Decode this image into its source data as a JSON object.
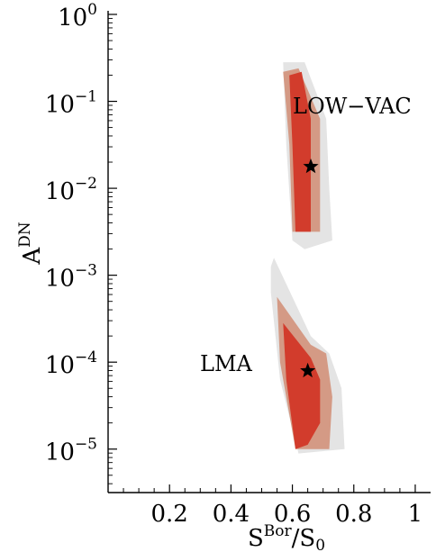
{
  "chart_data": {
    "type": "scatter",
    "title": "",
    "xlabel": {
      "main": "S",
      "sup": "Bor",
      "tail": "/S",
      "sub": "0"
    },
    "ylabel": {
      "main": "A",
      "sup": "DN"
    },
    "xlim": [
      0.0,
      1.05
    ],
    "ylim_log10": [
      -5.5,
      0
    ],
    "yscale": "log",
    "grid": false,
    "x_ticks": [
      {
        "value": 0.2,
        "label": "0.2"
      },
      {
        "value": 0.4,
        "label": "0.4"
      },
      {
        "value": 0.6,
        "label": "0.6"
      },
      {
        "value": 0.8,
        "label": "0.8"
      },
      {
        "value": 1.0,
        "label": "1"
      }
    ],
    "y_ticks": [
      {
        "exp": -5,
        "label_base": "10",
        "label_exp": "−5"
      },
      {
        "exp": -4,
        "label_base": "10",
        "label_exp": "−4"
      },
      {
        "exp": -3,
        "label_base": "10",
        "label_exp": "−3"
      },
      {
        "exp": -2,
        "label_base": "10",
        "label_exp": "−2"
      },
      {
        "exp": -1,
        "label_base": "10",
        "label_exp": "−1"
      },
      {
        "exp": 0,
        "label_base": "10",
        "label_exp": "0"
      }
    ],
    "colors": {
      "outer": "#e4e4e4",
      "middle": "#d49a85",
      "inner": "#d23c2c",
      "star": "#000000"
    },
    "regions": [
      {
        "name": "LOW-VAC",
        "label": "LOW−VAC",
        "best_fit": {
          "x": 0.66,
          "y_log10": -1.75
        },
        "outer": [
          [
            0.57,
            -0.55
          ],
          [
            0.64,
            -0.55
          ],
          [
            0.71,
            -1.2
          ],
          [
            0.72,
            -2.0
          ],
          [
            0.73,
            -2.6
          ],
          [
            0.64,
            -2.7
          ],
          [
            0.6,
            -2.6
          ],
          [
            0.58,
            -1.5
          ]
        ],
        "middle": [
          [
            0.57,
            -0.66
          ],
          [
            0.62,
            -0.62
          ],
          [
            0.69,
            -1.2
          ],
          [
            0.69,
            -2.5
          ],
          [
            0.6,
            -2.5
          ],
          [
            0.59,
            -1.5
          ]
        ],
        "inner": [
          [
            0.59,
            -0.7
          ],
          [
            0.63,
            -0.66
          ],
          [
            0.66,
            -1.2
          ],
          [
            0.66,
            -2.5
          ],
          [
            0.61,
            -2.5
          ],
          [
            0.6,
            -1.5
          ]
        ]
      },
      {
        "name": "LMA",
        "label": "LMA",
        "best_fit": {
          "x": 0.65,
          "y_log10": -4.1
        },
        "outer": [
          [
            0.53,
            -2.9
          ],
          [
            0.54,
            -2.8
          ],
          [
            0.66,
            -3.7
          ],
          [
            0.72,
            -3.9
          ],
          [
            0.76,
            -4.3
          ],
          [
            0.77,
            -5.0
          ],
          [
            0.62,
            -5.05
          ],
          [
            0.56,
            -4.2
          ],
          [
            0.53,
            -3.2
          ]
        ],
        "middle": [
          [
            0.55,
            -3.25
          ],
          [
            0.66,
            -3.8
          ],
          [
            0.71,
            -3.9
          ],
          [
            0.73,
            -4.4
          ],
          [
            0.72,
            -5.0
          ],
          [
            0.61,
            -5.0
          ],
          [
            0.56,
            -4.0
          ]
        ],
        "inner": [
          [
            0.57,
            -3.55
          ],
          [
            0.66,
            -3.95
          ],
          [
            0.69,
            -4.2
          ],
          [
            0.69,
            -4.7
          ],
          [
            0.65,
            -4.95
          ],
          [
            0.61,
            -5.0
          ],
          [
            0.58,
            -4.2
          ]
        ]
      }
    ]
  }
}
